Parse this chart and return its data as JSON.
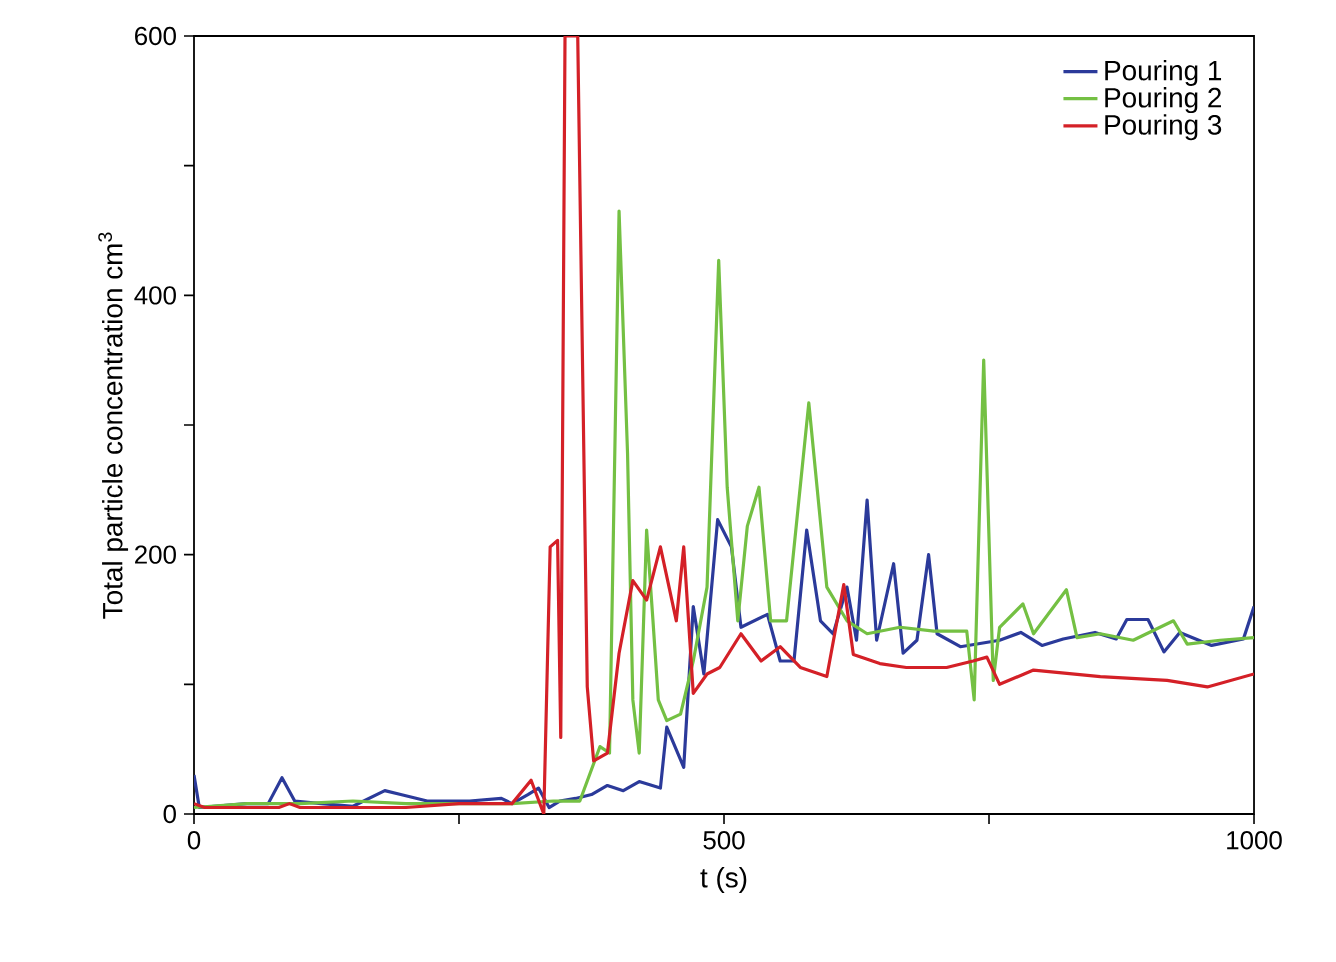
{
  "chart_data": {
    "type": "line",
    "xlabel": "t (s)",
    "ylabel": "Total particle concentration cm$^{3}$",
    "xlim": [
      0,
      1000
    ],
    "ylim": [
      0,
      600
    ],
    "xticks": [
      0,
      {
        "value": 250,
        "label": null
      },
      500,
      {
        "value": 750,
        "label": null
      },
      1000
    ],
    "yticks": [
      0,
      {
        "value": 100,
        "label": null
      },
      200,
      {
        "value": 300,
        "label": null
      },
      400,
      {
        "value": 500,
        "label": null
      },
      600
    ],
    "legend": "top right",
    "series": [
      {
        "name": "Pouring 1",
        "color": "#2b3a9a",
        "x": [
          0,
          5,
          50,
          70,
          83,
          95,
          120,
          150,
          180,
          195,
          220,
          260,
          290,
          300,
          315,
          325,
          335,
          345,
          360,
          375,
          390,
          405,
          420,
          440,
          446,
          462,
          471,
          481,
          494,
          507,
          516,
          541,
          553,
          566,
          578,
          591,
          603,
          616,
          625,
          635,
          644,
          660,
          669,
          682,
          693,
          701,
          723,
          760,
          780,
          800,
          820,
          850,
          870,
          880,
          900,
          915,
          930,
          960,
          990,
          1000
        ],
        "values": [
          30,
          5,
          8,
          8,
          28,
          10,
          8,
          6,
          18,
          15,
          10,
          10,
          12,
          8,
          15,
          20,
          5,
          10,
          12,
          15,
          22,
          18,
          25,
          20,
          67,
          36,
          160,
          108,
          227,
          206,
          144,
          154,
          118,
          118,
          219,
          149,
          139,
          175,
          134,
          242,
          134,
          193,
          124,
          134,
          200,
          139,
          129,
          134,
          140,
          130,
          135,
          140,
          135,
          150,
          150,
          125,
          140,
          130,
          135,
          160
        ]
      },
      {
        "name": "Pouring 2",
        "color": "#74c043",
        "x": [
          0,
          50,
          100,
          150,
          200,
          250,
          300,
          339,
          364,
          383,
          392,
          401,
          409,
          414,
          420,
          427,
          433,
          438,
          446,
          459,
          471,
          484,
          495,
          503,
          513,
          522,
          533,
          544,
          559,
          580,
          597,
          616,
          635,
          666,
          698,
          729,
          736,
          745,
          754,
          760,
          782,
          792,
          823,
          833,
          855,
          886,
          924,
          937,
          968,
          1000
        ],
        "values": [
          5,
          8,
          8,
          10,
          8,
          8,
          8,
          10,
          10,
          52,
          47,
          465,
          278,
          88,
          47,
          219,
          149,
          88,
          72,
          77,
          118,
          175,
          427,
          252,
          149,
          222,
          252,
          149,
          149,
          317,
          175,
          149,
          139,
          144,
          141,
          141,
          88,
          350,
          103,
          144,
          162,
          139,
          173,
          136,
          139,
          134,
          149,
          131,
          134,
          136
        ]
      },
      {
        "name": "Pouring 3",
        "color": "#d42027",
        "x": [
          0,
          10,
          80,
          90,
          100,
          200,
          250,
          300,
          318,
          330,
          336,
          343,
          346,
          350,
          362,
          371,
          377,
          390,
          401,
          414,
          427,
          440,
          455,
          462,
          471,
          484,
          496,
          516,
          535,
          553,
          572,
          597,
          613,
          622,
          647,
          672,
          710,
          735,
          748,
          760,
          792,
          855,
          918,
          956,
          1000
        ],
        "values": [
          8,
          5,
          5,
          8,
          5,
          5,
          8,
          8,
          26,
          0,
          206,
          211,
          59,
          600,
          600,
          98,
          41,
          47,
          124,
          180,
          165,
          206,
          149,
          206,
          93,
          108,
          113,
          139,
          118,
          129,
          113,
          106,
          177,
          123,
          116,
          113,
          113,
          118,
          121,
          100,
          111,
          106,
          103,
          98,
          108
        ]
      }
    ]
  }
}
